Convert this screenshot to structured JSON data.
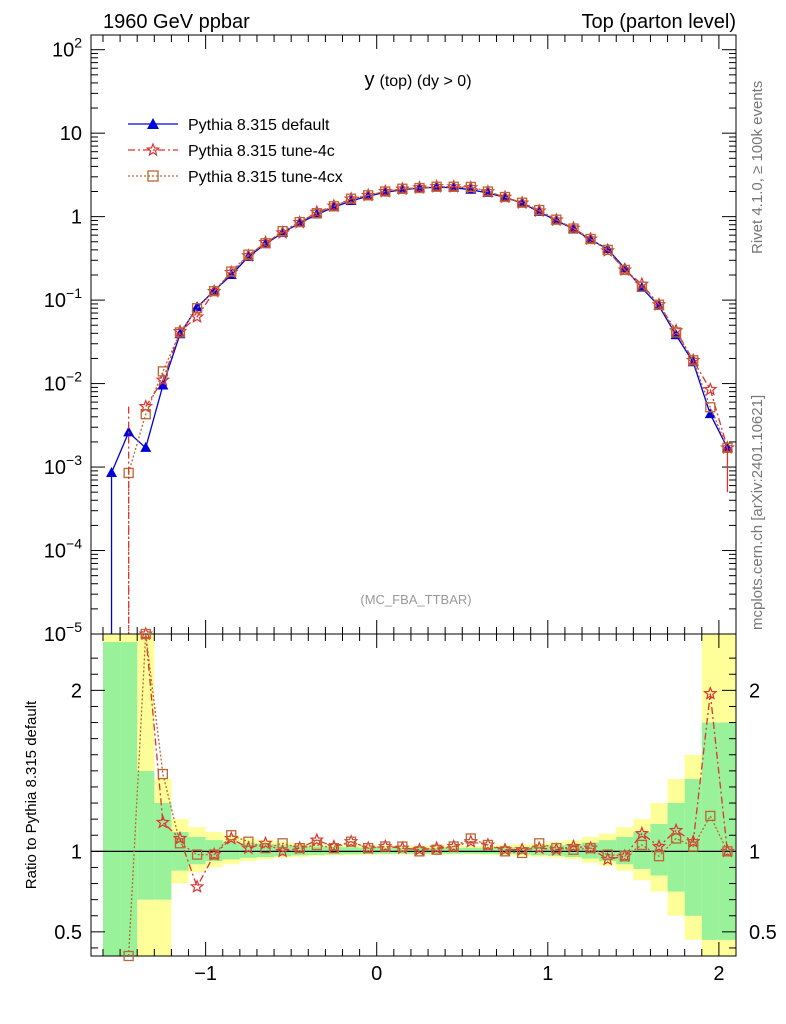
{
  "header": {
    "left": "1960 GeV ppbar",
    "right": "Top (parton level)"
  },
  "side": {
    "rivet": "Rivet 4.1.0, ≥ 100k events",
    "mcplots": "mcplots.cern.ch [arXiv:2401.10621]"
  },
  "plot_name": "(MC_FBA_TTBAR)",
  "colors": {
    "default": "#0000dd",
    "tune4c": "#dd3333",
    "tune4cx": "#bb6633",
    "band_yellow": "#ffff99",
    "band_green": "#99f299"
  },
  "chart_data": [
    {
      "type": "line",
      "title": "y (top) (dy > 0)",
      "title_main": "y",
      "title_rest": "(top) (dy > 0)",
      "xlabel": "",
      "ylabel": "",
      "yscale": "log",
      "xlim": [
        -1.67,
        2.1
      ],
      "ylim": [
        1e-05,
        150
      ],
      "y_ticks": [
        {
          "value": 1e-05,
          "base": "10",
          "exp": "−5"
        },
        {
          "value": 0.0001,
          "base": "10",
          "exp": "−4"
        },
        {
          "value": 0.001,
          "base": "10",
          "exp": "−3"
        },
        {
          "value": 0.01,
          "base": "10",
          "exp": "−2"
        },
        {
          "value": 0.1,
          "base": "10",
          "exp": "−1"
        },
        {
          "value": 1,
          "base": "1",
          "exp": ""
        },
        {
          "value": 10,
          "base": "10",
          "exp": ""
        },
        {
          "value": 100,
          "base": "10",
          "exp": "2"
        }
      ],
      "x": [
        -1.55,
        -1.45,
        -1.35,
        -1.25,
        -1.15,
        -1.05,
        -0.95,
        -0.85,
        -0.75,
        -0.65,
        -0.55,
        -0.45,
        -0.35,
        -0.25,
        -0.15,
        -0.05,
        0.05,
        0.15,
        0.25,
        0.35,
        0.45,
        0.55,
        0.65,
        0.75,
        0.85,
        0.95,
        1.05,
        1.15,
        1.25,
        1.35,
        1.45,
        1.55,
        1.65,
        1.75,
        1.85,
        1.95,
        2.05
      ],
      "series": [
        {
          "name": "Pythia 8.315 default",
          "marker": "triangle",
          "values": [
            0.00085,
            0.0026,
            0.0017,
            0.0095,
            0.039,
            0.082,
            0.13,
            0.2,
            0.33,
            0.47,
            0.64,
            0.84,
            1.06,
            1.3,
            1.54,
            1.76,
            1.95,
            2.1,
            2.2,
            2.25,
            2.22,
            2.1,
            1.92,
            1.7,
            1.45,
            1.14,
            0.9,
            0.71,
            0.53,
            0.41,
            0.24,
            0.14,
            0.085,
            0.038,
            0.018,
            0.0043,
            0.0017
          ]
        },
        {
          "name": "Pythia 8.315 tune-4c",
          "marker": "star",
          "values": [
            null,
            null,
            0.0053,
            0.011,
            0.042,
            0.063,
            0.127,
            0.215,
            0.34,
            0.49,
            0.64,
            0.85,
            1.13,
            1.34,
            1.63,
            1.8,
            2.0,
            2.14,
            2.22,
            2.29,
            2.28,
            2.22,
            1.99,
            1.71,
            1.46,
            1.17,
            0.91,
            0.73,
            0.54,
            0.39,
            0.23,
            0.155,
            0.088,
            0.043,
            0.019,
            0.0085,
            0.0017
          ]
        },
        {
          "name": "Pythia 8.315 tune-4cx",
          "marker": "square",
          "values": [
            null,
            0.00085,
            0.0043,
            0.014,
            0.041,
            0.08,
            0.128,
            0.22,
            0.35,
            0.48,
            0.67,
            0.86,
            1.1,
            1.33,
            1.64,
            1.8,
            2.0,
            2.16,
            2.2,
            2.28,
            2.28,
            2.27,
            2.0,
            1.72,
            1.47,
            1.2,
            0.92,
            0.72,
            0.54,
            0.4,
            0.23,
            0.145,
            0.088,
            0.041,
            0.019,
            0.0052,
            0.0017
          ]
        }
      ]
    },
    {
      "type": "line",
      "title": "",
      "ylabel": "Ratio to Pythia 8.315 default",
      "xlabel": "",
      "xlim": [
        -1.67,
        2.1
      ],
      "ylim": [
        0.35,
        2.35
      ],
      "x_ticks": [
        -1,
        0,
        1,
        2
      ],
      "x_tick_labels": [
        "−1",
        "0",
        "1",
        "2"
      ],
      "y_ticks": [
        0.5,
        1,
        2
      ],
      "y_tick_labels": [
        "0.5",
        "1",
        "2"
      ],
      "x": [
        -1.55,
        -1.45,
        -1.35,
        -1.25,
        -1.15,
        -1.05,
        -0.95,
        -0.85,
        -0.75,
        -0.65,
        -0.55,
        -0.45,
        -0.35,
        -0.25,
        -0.15,
        -0.05,
        0.05,
        0.15,
        0.25,
        0.35,
        0.45,
        0.55,
        0.65,
        0.75,
        0.85,
        0.95,
        1.05,
        1.15,
        1.25,
        1.35,
        1.45,
        1.55,
        1.65,
        1.75,
        1.85,
        1.95,
        2.05
      ],
      "band_yellow": [
        [
          0.2,
          2.5
        ],
        [
          0.2,
          2.5
        ],
        [
          0.35,
          2.5
        ],
        [
          0.35,
          1.45
        ],
        [
          0.8,
          1.2
        ],
        [
          0.87,
          1.15
        ],
        [
          0.9,
          1.12
        ],
        [
          0.92,
          1.1
        ],
        [
          0.94,
          1.08
        ],
        [
          0.95,
          1.07
        ],
        [
          0.96,
          1.06
        ],
        [
          0.965,
          1.05
        ],
        [
          0.97,
          1.045
        ],
        [
          0.975,
          1.04
        ],
        [
          0.975,
          1.04
        ],
        [
          0.978,
          1.035
        ],
        [
          0.98,
          1.035
        ],
        [
          0.98,
          1.035
        ],
        [
          0.98,
          1.035
        ],
        [
          0.98,
          1.035
        ],
        [
          0.98,
          1.035
        ],
        [
          0.98,
          1.035
        ],
        [
          0.978,
          1.035
        ],
        [
          0.975,
          1.04
        ],
        [
          0.972,
          1.045
        ],
        [
          0.965,
          1.05
        ],
        [
          0.96,
          1.06
        ],
        [
          0.95,
          1.07
        ],
        [
          0.93,
          1.09
        ],
        [
          0.91,
          1.11
        ],
        [
          0.88,
          1.15
        ],
        [
          0.82,
          1.2
        ],
        [
          0.75,
          1.3
        ],
        [
          0.6,
          1.45
        ],
        [
          0.45,
          1.6
        ],
        [
          0.3,
          2.5
        ],
        [
          0.3,
          2.5
        ]
      ],
      "band_green": [
        [
          0.2,
          2.3
        ],
        [
          0.2,
          2.3
        ],
        [
          0.7,
          1.5
        ],
        [
          0.7,
          1.3
        ],
        [
          0.88,
          1.12
        ],
        [
          0.92,
          1.09
        ],
        [
          0.94,
          1.07
        ],
        [
          0.95,
          1.06
        ],
        [
          0.96,
          1.05
        ],
        [
          0.965,
          1.045
        ],
        [
          0.97,
          1.04
        ],
        [
          0.975,
          1.035
        ],
        [
          0.978,
          1.03
        ],
        [
          0.98,
          1.028
        ],
        [
          0.982,
          1.025
        ],
        [
          0.984,
          1.023
        ],
        [
          0.985,
          1.022
        ],
        [
          0.985,
          1.022
        ],
        [
          0.985,
          1.022
        ],
        [
          0.985,
          1.022
        ],
        [
          0.985,
          1.022
        ],
        [
          0.985,
          1.022
        ],
        [
          0.984,
          1.023
        ],
        [
          0.982,
          1.025
        ],
        [
          0.98,
          1.028
        ],
        [
          0.976,
          1.032
        ],
        [
          0.972,
          1.038
        ],
        [
          0.965,
          1.045
        ],
        [
          0.955,
          1.055
        ],
        [
          0.94,
          1.07
        ],
        [
          0.92,
          1.09
        ],
        [
          0.89,
          1.12
        ],
        [
          0.85,
          1.17
        ],
        [
          0.75,
          1.3
        ],
        [
          0.6,
          1.45
        ],
        [
          0.45,
          1.8
        ],
        [
          0.45,
          1.8
        ]
      ],
      "series": [
        {
          "name": "Pythia 8.315 tune-4c",
          "values": [
            null,
            null,
            2.35,
            1.18,
            1.08,
            0.78,
            0.98,
            1.08,
            1.02,
            1.05,
            1.0,
            1.02,
            1.07,
            1.03,
            1.06,
            1.02,
            1.03,
            1.02,
            1.01,
            1.02,
            1.03,
            1.06,
            1.04,
            1.01,
            1.01,
            1.02,
            1.01,
            1.03,
            1.02,
            0.95,
            0.97,
            1.11,
            1.03,
            1.13,
            1.06,
            1.98,
            1.0
          ]
        },
        {
          "name": "Pythia 8.315 tune-4cx",
          "values": [
            null,
            0.35,
            2.35,
            1.48,
            1.05,
            0.98,
            0.98,
            1.1,
            1.06,
            1.02,
            1.05,
            1.02,
            1.04,
            1.02,
            1.06,
            1.02,
            1.03,
            1.03,
            1.0,
            1.01,
            1.03,
            1.08,
            1.04,
            1.0,
            0.99,
            1.05,
            1.02,
            1.01,
            1.02,
            0.98,
            0.97,
            1.04,
            0.97,
            1.08,
            1.03,
            1.22,
            1.0
          ]
        }
      ]
    }
  ]
}
